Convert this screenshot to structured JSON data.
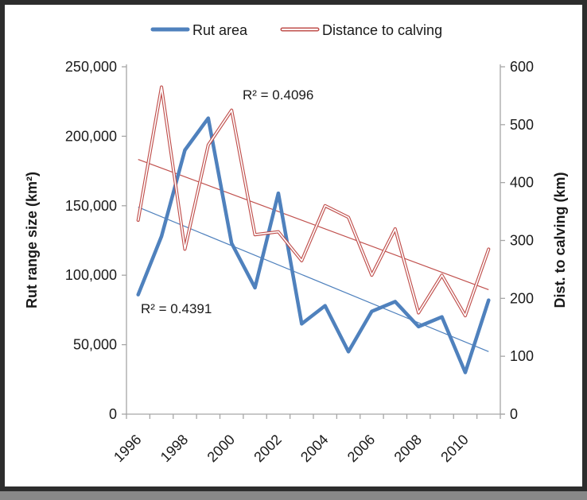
{
  "legend": [
    {
      "label": "Rut area"
    },
    {
      "label": "Distance to calving"
    }
  ],
  "annotations": {
    "red_r2": "R² = 0.4096",
    "blue_r2": "R² = 0.4391"
  },
  "colors": {
    "rut_area": "#4F81BD",
    "distance": "#C0504D",
    "axis_line": "#A6A6A6",
    "frame_border": "#2d2d2d"
  },
  "chart_data": {
    "type": "line",
    "x": [
      1996,
      1997,
      1998,
      1999,
      2000,
      2001,
      2002,
      2003,
      2004,
      2005,
      2006,
      2007,
      2008,
      2009,
      2010,
      2011
    ],
    "series": [
      {
        "name": "Rut area",
        "axis": "left",
        "color": "#4F81BD",
        "style": "thick-solid",
        "values": [
          86000,
          128000,
          190000,
          213000,
          123000,
          91000,
          159000,
          65000,
          78000,
          45000,
          74000,
          81000,
          63000,
          70000,
          30000,
          82000
        ]
      },
      {
        "name": "Distance to calving",
        "axis": "right",
        "color": "#C0504D",
        "style": "double-line",
        "values": [
          335,
          565,
          285,
          465,
          525,
          310,
          315,
          265,
          360,
          340,
          240,
          320,
          175,
          240,
          170,
          285
        ]
      }
    ],
    "trendlines": [
      {
        "series": "Rut area",
        "axis": "left",
        "color": "#4F81BD",
        "r2": 0.4391,
        "start_value": 149000,
        "end_value": 45000
      },
      {
        "series": "Distance to calving",
        "axis": "right",
        "color": "#C0504D",
        "r2": 0.4096,
        "start_value": 440,
        "end_value": 215
      }
    ],
    "left_axis": {
      "label": "Rut range size (km²)",
      "ticks": [
        "250,000",
        "200,000",
        "150,000",
        "100,000",
        "50,000",
        "0"
      ],
      "range": [
        0,
        250000
      ]
    },
    "right_axis": {
      "label": "Dist. to calving (km)",
      "ticks": [
        "600",
        "500",
        "400",
        "300",
        "200",
        "100",
        "0"
      ],
      "range": [
        0,
        600
      ]
    },
    "x_axis": {
      "tick_labels": [
        "1996",
        "1998",
        "2000",
        "2002",
        "2004",
        "2006",
        "2008",
        "2010"
      ],
      "label_interval": 2
    },
    "grid": false,
    "legend_position": "top"
  }
}
